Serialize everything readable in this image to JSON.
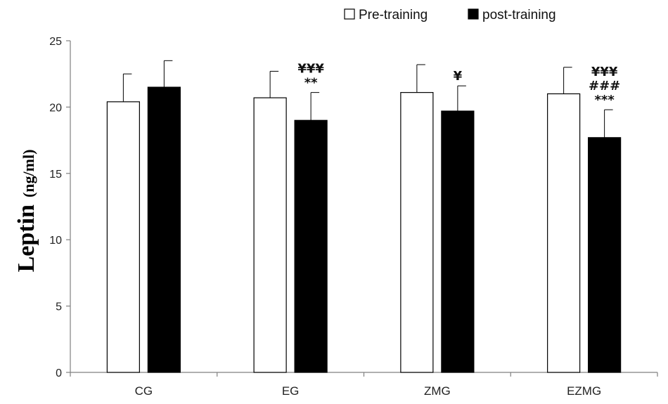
{
  "chart_data": {
    "type": "bar",
    "title": "",
    "xlabel": "",
    "ylabel": "Leptin",
    "ylabel_unit": "(ng/ml)",
    "ylim": [
      0,
      25
    ],
    "yticks": [
      0,
      5,
      10,
      15,
      20,
      25
    ],
    "grid": false,
    "legend_position": "top-right",
    "categories": [
      "CG",
      "EG",
      "ZMG",
      "EZMG"
    ],
    "series": [
      {
        "name": "Pre-training",
        "color": "#ffffff",
        "values": [
          20.4,
          20.7,
          21.1,
          21.0
        ],
        "errors": [
          2.1,
          2.0,
          2.1,
          2.0
        ]
      },
      {
        "name": "post-training",
        "color": "#000000",
        "values": [
          21.5,
          19.0,
          19.7,
          17.7
        ],
        "errors": [
          2.0,
          2.1,
          1.9,
          2.1
        ]
      }
    ],
    "annotations": [
      {
        "category": "EG",
        "series": "post-training",
        "lines": [
          "¥¥¥",
          "**"
        ]
      },
      {
        "category": "ZMG",
        "series": "post-training",
        "lines": [
          "¥"
        ]
      },
      {
        "category": "EZMG",
        "series": "post-training",
        "lines": [
          "¥¥¥",
          "###",
          "***"
        ]
      }
    ]
  }
}
